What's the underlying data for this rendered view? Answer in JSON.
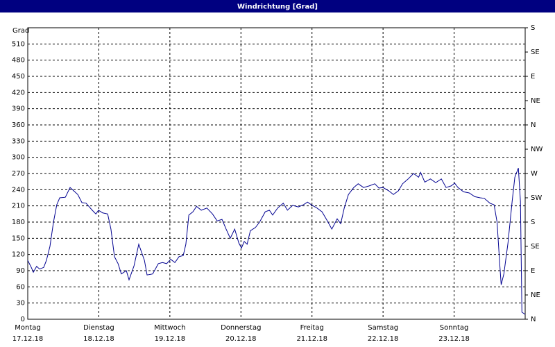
{
  "chart_data": {
    "type": "line",
    "title": "Windrichtung [Grad]",
    "y_label": "Grad",
    "color": "#000090",
    "grid": true,
    "xlim": [
      0,
      168
    ],
    "xticks": [
      {
        "value": 0,
        "label": "Montag"
      },
      {
        "value": 24,
        "label": "Dienstag"
      },
      {
        "value": 48,
        "label": "Mittwoch"
      },
      {
        "value": 72,
        "label": "Donnerstag"
      },
      {
        "value": 96,
        "label": "Freitag"
      },
      {
        "value": 120,
        "label": "Samstag"
      },
      {
        "value": 144,
        "label": "Sonntag"
      }
    ],
    "xtick_dates": [
      "17.12.18",
      "18.12.18",
      "19.12.18",
      "20.12.18",
      "21.12.18",
      "22.12.18",
      "23.12.18"
    ],
    "ylim": [
      0,
      540
    ],
    "yticks": [
      0,
      30,
      60,
      90,
      120,
      150,
      180,
      210,
      240,
      270,
      300,
      330,
      360,
      390,
      420,
      450,
      480,
      510
    ],
    "y2lim": [
      0,
      540
    ],
    "y2ticks": [
      {
        "value": 0,
        "label": "N"
      },
      {
        "value": 45,
        "label": "NE"
      },
      {
        "value": 90,
        "label": "E"
      },
      {
        "value": 135,
        "label": "SE"
      },
      {
        "value": 180,
        "label": "S"
      },
      {
        "value": 225,
        "label": "SW"
      },
      {
        "value": 270,
        "label": "W"
      },
      {
        "value": 315,
        "label": "NW"
      },
      {
        "value": 360,
        "label": "N"
      },
      {
        "value": 405,
        "label": "NE"
      },
      {
        "value": 450,
        "label": "E"
      },
      {
        "value": 495,
        "label": "SE"
      },
      {
        "value": 540,
        "label": "S"
      }
    ],
    "x": [
      0,
      1.2,
      1.9,
      3.0,
      4.0,
      5.4,
      6.3,
      7.5,
      8.7,
      9.8,
      10.8,
      12.7,
      14.3,
      15.5,
      16.9,
      18.3,
      19.7,
      21.6,
      23.0,
      23.9,
      25.3,
      27.0,
      28.1,
      29.3,
      30.5,
      31.6,
      33.3,
      34.2,
      35.9,
      37.5,
      38.7,
      39.4,
      40.3,
      42.2,
      44.1,
      45.5,
      46.9,
      48.3,
      49.7,
      51.1,
      52.5,
      53.4,
      54.4,
      55.8,
      57.0,
      58.6,
      60.5,
      62.4,
      64.0,
      65.6,
      67.0,
      68.4,
      69.9,
      71.3,
      72.2,
      73.1,
      74.1,
      75.2,
      76.9,
      78.3,
      80.2,
      81.6,
      82.7,
      84.4,
      86.3,
      87.7,
      89.5,
      91.4,
      93.1,
      94.5,
      96.1,
      97.7,
      99.4,
      101.2,
      102.7,
      104.5,
      105.7,
      106.9,
      108.3,
      110.1,
      111.6,
      113.4,
      115.3,
      117.2,
      118.6,
      120.0,
      121.9,
      123.5,
      125.2,
      126.6,
      128.5,
      130.3,
      132.0,
      132.7,
      134.1,
      136.0,
      137.8,
      139.7,
      141.3,
      143.0,
      144.2,
      145.3,
      147.2,
      149.1,
      151.0,
      152.8,
      154.2,
      156.1,
      157.5,
      158.5,
      159.4,
      159.9,
      160.8,
      162.2,
      163.6,
      164.5,
      165.7,
      166.4,
      166.9,
      168
    ],
    "values": [
      109,
      96,
      87,
      98,
      93,
      96,
      109,
      135,
      180,
      212,
      225,
      226,
      244,
      238,
      231,
      216,
      215,
      203,
      195,
      202,
      197,
      195,
      167,
      116,
      103,
      84,
      90,
      73,
      99,
      139,
      120,
      109,
      82,
      84,
      103,
      105,
      103,
      111,
      105,
      116,
      118,
      139,
      193,
      199,
      209,
      202,
      206,
      195,
      182,
      185,
      167,
      150,
      167,
      141,
      132,
      144,
      139,
      164,
      170,
      180,
      199,
      202,
      193,
      206,
      215,
      202,
      211,
      208,
      212,
      217,
      211,
      206,
      199,
      182,
      167,
      186,
      177,
      206,
      231,
      244,
      251,
      244,
      247,
      251,
      243,
      244,
      238,
      231,
      238,
      251,
      260,
      270,
      263,
      272,
      254,
      260,
      253,
      260,
      244,
      247,
      252,
      244,
      236,
      234,
      227,
      225,
      224,
      215,
      212,
      180,
      103,
      64,
      84,
      141,
      218,
      263,
      280,
      218,
      13,
      9
    ]
  }
}
